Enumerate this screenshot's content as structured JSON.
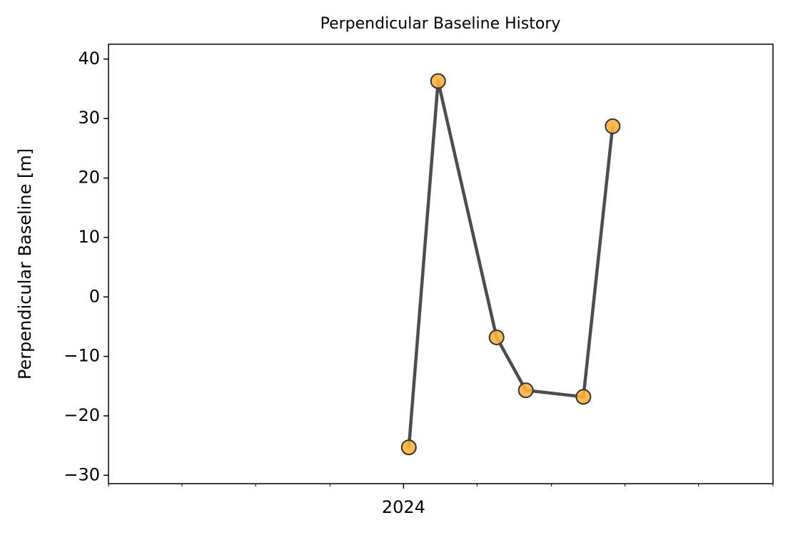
{
  "chart_data": {
    "type": "line",
    "title": "Perpendicular Baseline History",
    "ylabel": "Perpendicular Baseline [m]",
    "x": [
      2024.006,
      2024.039,
      2024.105,
      2024.138,
      2024.203,
      2024.236
    ],
    "values": [
      -25.3,
      36.3,
      -6.8,
      -15.7,
      -16.8,
      28.7
    ],
    "line_color": "#4d4d4d",
    "marker_color": "#fbb13c",
    "xlim": [
      2023.667,
      2024.417
    ],
    "xticks": [
      2024
    ],
    "xminor_ticks": [
      2023.667,
      2023.75,
      2023.833,
      2023.917,
      2024.083,
      2024.167,
      2024.25,
      2024.333,
      2024.417
    ],
    "ylim": [
      -31.4,
      42.5
    ],
    "yticks": [
      {
        "value": -30,
        "label": "−30"
      },
      {
        "value": -20,
        "label": "−20"
      },
      {
        "value": -10,
        "label": "−10"
      },
      0,
      10,
      20,
      30,
      40
    ],
    "grid": false
  }
}
